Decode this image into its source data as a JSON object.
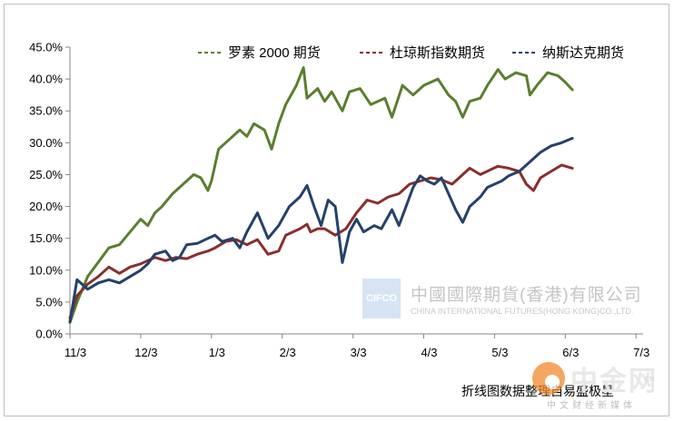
{
  "chart_data": {
    "type": "line",
    "x_categories": [
      "11/3",
      "12/3",
      "1/3",
      "2/3",
      "3/3",
      "4/3",
      "5/3",
      "6/3",
      "7/3"
    ],
    "y_ticks": [
      "0.0%",
      "5.0%",
      "10.0%",
      "15.0%",
      "20.0%",
      "25.0%",
      "30.0%",
      "35.0%",
      "40.0%",
      "45.0%"
    ],
    "ylim": [
      0,
      45
    ],
    "grid": false,
    "legend_position": "top-right",
    "series": [
      {
        "name": "罗素 2000 期货",
        "color": "#5b7e2f",
        "values": [
          [
            0,
            1.8
          ],
          [
            0.1,
            5
          ],
          [
            0.25,
            9
          ],
          [
            0.45,
            12
          ],
          [
            0.55,
            13.5
          ],
          [
            0.7,
            14
          ],
          [
            0.85,
            16
          ],
          [
            1.0,
            18
          ],
          [
            1.1,
            17
          ],
          [
            1.2,
            19
          ],
          [
            1.3,
            20
          ],
          [
            1.45,
            22
          ],
          [
            1.6,
            23.5
          ],
          [
            1.75,
            25
          ],
          [
            1.85,
            24.5
          ],
          [
            1.95,
            22.5
          ],
          [
            2.0,
            24
          ],
          [
            2.1,
            29
          ],
          [
            2.2,
            30
          ],
          [
            2.3,
            31
          ],
          [
            2.4,
            32
          ],
          [
            2.5,
            31
          ],
          [
            2.6,
            33
          ],
          [
            2.75,
            32
          ],
          [
            2.85,
            29
          ],
          [
            2.95,
            33
          ],
          [
            3.05,
            36
          ],
          [
            3.2,
            39
          ],
          [
            3.3,
            41.8
          ],
          [
            3.35,
            37
          ],
          [
            3.5,
            38.5
          ],
          [
            3.6,
            36.5
          ],
          [
            3.7,
            38
          ],
          [
            3.85,
            35
          ],
          [
            3.95,
            38
          ],
          [
            4.1,
            38.5
          ],
          [
            4.25,
            36
          ],
          [
            4.45,
            37
          ],
          [
            4.55,
            34
          ],
          [
            4.7,
            39
          ],
          [
            4.85,
            37.5
          ],
          [
            5.0,
            39
          ],
          [
            5.2,
            40
          ],
          [
            5.35,
            37.5
          ],
          [
            5.45,
            36.5
          ],
          [
            5.55,
            34
          ],
          [
            5.65,
            36.5
          ],
          [
            5.8,
            37
          ],
          [
            5.9,
            39
          ],
          [
            6.05,
            41.5
          ],
          [
            6.15,
            40
          ],
          [
            6.3,
            41
          ],
          [
            6.45,
            40.5
          ],
          [
            6.5,
            37.5
          ],
          [
            6.6,
            39
          ],
          [
            6.75,
            41
          ],
          [
            6.9,
            40.5
          ],
          [
            7.0,
            39.5
          ],
          [
            7.1,
            38.3
          ]
        ]
      },
      {
        "name": "杜琼斯指数期货",
        "color": "#8b2d2d",
        "values": [
          [
            0,
            2.5
          ],
          [
            0.1,
            6
          ],
          [
            0.25,
            7.8
          ],
          [
            0.4,
            9
          ],
          [
            0.55,
            10.5
          ],
          [
            0.7,
            9.5
          ],
          [
            0.85,
            10.5
          ],
          [
            1.0,
            11
          ],
          [
            1.1,
            11.5
          ],
          [
            1.2,
            12
          ],
          [
            1.35,
            11.5
          ],
          [
            1.5,
            12
          ],
          [
            1.65,
            11.8
          ],
          [
            1.8,
            12.5
          ],
          [
            1.95,
            13
          ],
          [
            2.05,
            13.5
          ],
          [
            2.2,
            14.5
          ],
          [
            2.35,
            14.8
          ],
          [
            2.5,
            14
          ],
          [
            2.65,
            14.8
          ],
          [
            2.8,
            12.5
          ],
          [
            2.95,
            13
          ],
          [
            3.05,
            15.5
          ],
          [
            3.25,
            16.5
          ],
          [
            3.35,
            17.2
          ],
          [
            3.4,
            16
          ],
          [
            3.5,
            16.5
          ],
          [
            3.6,
            16.5
          ],
          [
            3.75,
            15.5
          ],
          [
            3.9,
            16.5
          ],
          [
            4.05,
            19
          ],
          [
            4.2,
            21
          ],
          [
            4.35,
            20.5
          ],
          [
            4.5,
            21.5
          ],
          [
            4.65,
            22
          ],
          [
            4.8,
            23.5
          ],
          [
            4.95,
            24
          ],
          [
            5.1,
            24.5
          ],
          [
            5.25,
            24.2
          ],
          [
            5.4,
            23.5
          ],
          [
            5.5,
            24.5
          ],
          [
            5.65,
            26
          ],
          [
            5.8,
            25
          ],
          [
            5.95,
            25.8
          ],
          [
            6.05,
            26.3
          ],
          [
            6.2,
            26
          ],
          [
            6.35,
            25.5
          ],
          [
            6.45,
            23.5
          ],
          [
            6.55,
            22.5
          ],
          [
            6.65,
            24.5
          ],
          [
            6.8,
            25.5
          ],
          [
            6.95,
            26.5
          ],
          [
            7.1,
            26
          ]
        ]
      },
      {
        "name": "纳斯达克期货",
        "color": "#24416b",
        "values": [
          [
            0,
            1.9
          ],
          [
            0.1,
            8.5
          ],
          [
            0.25,
            7
          ],
          [
            0.4,
            8
          ],
          [
            0.55,
            8.5
          ],
          [
            0.7,
            8
          ],
          [
            0.85,
            9
          ],
          [
            1.0,
            10
          ],
          [
            1.1,
            11
          ],
          [
            1.2,
            12.5
          ],
          [
            1.35,
            13
          ],
          [
            1.45,
            11.5
          ],
          [
            1.55,
            12
          ],
          [
            1.65,
            14
          ],
          [
            1.8,
            14.2
          ],
          [
            1.95,
            15
          ],
          [
            2.05,
            15.5
          ],
          [
            2.15,
            14.5
          ],
          [
            2.3,
            15
          ],
          [
            2.4,
            13.5
          ],
          [
            2.5,
            16
          ],
          [
            2.65,
            19
          ],
          [
            2.8,
            15
          ],
          [
            2.95,
            17
          ],
          [
            3.1,
            20
          ],
          [
            3.25,
            21.5
          ],
          [
            3.35,
            23.3
          ],
          [
            3.45,
            20
          ],
          [
            3.55,
            17
          ],
          [
            3.65,
            21
          ],
          [
            3.75,
            20
          ],
          [
            3.85,
            11.2
          ],
          [
            3.95,
            16
          ],
          [
            4.05,
            18
          ],
          [
            4.15,
            16
          ],
          [
            4.3,
            17
          ],
          [
            4.4,
            16.5
          ],
          [
            4.55,
            19.5
          ],
          [
            4.65,
            17
          ],
          [
            4.75,
            20
          ],
          [
            4.85,
            23
          ],
          [
            4.95,
            24.8
          ],
          [
            5.05,
            24
          ],
          [
            5.15,
            23.5
          ],
          [
            5.25,
            24.5
          ],
          [
            5.35,
            22
          ],
          [
            5.45,
            19.5
          ],
          [
            5.55,
            17.5
          ],
          [
            5.65,
            20
          ],
          [
            5.8,
            21.5
          ],
          [
            5.9,
            23
          ],
          [
            6.0,
            23.5
          ],
          [
            6.1,
            24
          ],
          [
            6.2,
            24.8
          ],
          [
            6.35,
            25.5
          ],
          [
            6.5,
            27
          ],
          [
            6.65,
            28.5
          ],
          [
            6.8,
            29.5
          ],
          [
            6.95,
            30
          ],
          [
            7.1,
            30.7
          ]
        ]
      }
    ]
  },
  "watermark": {
    "box_text": "CIFCO",
    "company_cn": "中國國際期貨(香港)有限公司",
    "company_en": "CHINA INTERNATIONAL FUTURES(HONG KONG)CO.,LTD."
  },
  "source_note": "折线图数据整理自易盛极星",
  "logo": {
    "main": "中金网",
    "sub": "中文财经新媒体",
    "url": "CN"
  }
}
